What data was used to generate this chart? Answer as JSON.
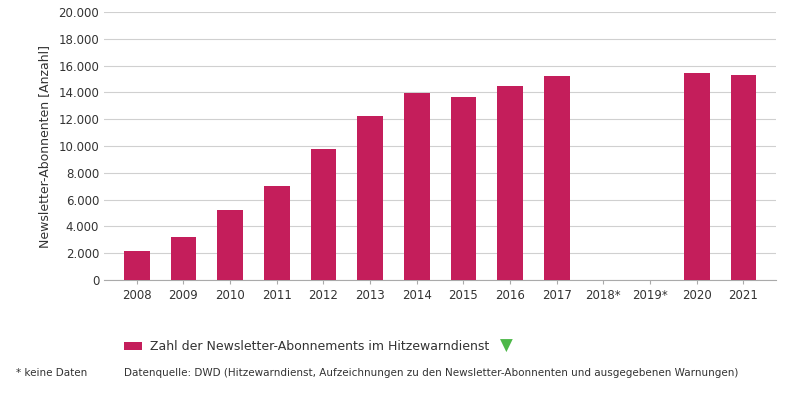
{
  "categories": [
    "2008",
    "2009",
    "2010",
    "2011",
    "2012",
    "2013",
    "2014",
    "2015",
    "2016",
    "2017",
    "2018*",
    "2019*",
    "2020",
    "2021"
  ],
  "values": [
    2150,
    3200,
    5250,
    7000,
    9750,
    12250,
    13950,
    13650,
    14450,
    15200,
    null,
    null,
    15450,
    15300
  ],
  "bar_color": "#C41E5B",
  "ylim": [
    0,
    20000
  ],
  "yticks": [
    0,
    2000,
    4000,
    6000,
    8000,
    10000,
    12000,
    14000,
    16000,
    18000,
    20000
  ],
  "ytick_labels": [
    "0",
    "2.000",
    "4.000",
    "6.000",
    "8.000",
    "10.000",
    "12.000",
    "14.000",
    "16.000",
    "18.000",
    "20.000"
  ],
  "ylabel": "Newsletter-Abonnenten [Anzahl]",
  "legend_label": "Zahl der Newsletter-Abonnements im Hitzewarndienst",
  "footnote_left": "* keine Daten",
  "footnote_right": "Datenquelle: DWD (Hitzewarndienst, Aufzeichnungen zu den Newsletter-Abonnenten und ausgegebenen Warnungen)",
  "background_color": "#ffffff",
  "grid_color": "#d0d0d0",
  "bar_width": 0.55,
  "arrow_color": "#4db848"
}
